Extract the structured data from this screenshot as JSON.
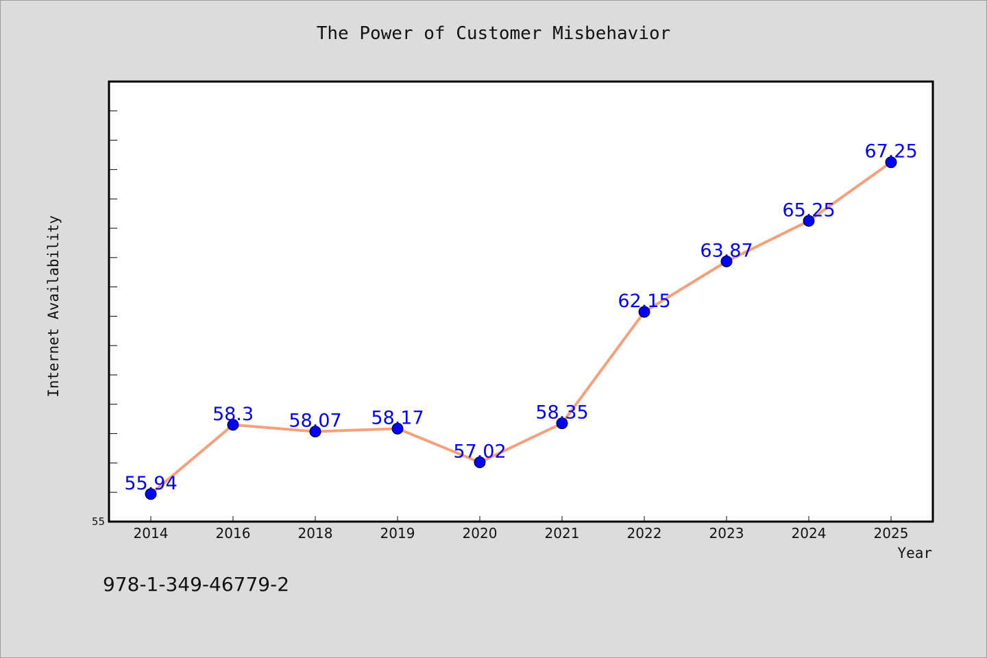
{
  "chart_data": {
    "type": "line",
    "title": "The Power of Customer Misbehavior",
    "xlabel": "Year",
    "ylabel": "Internet Availability",
    "categories": [
      "2014",
      "2016",
      "2018",
      "2019",
      "2020",
      "2021",
      "2022",
      "2023",
      "2024",
      "2025"
    ],
    "series": [
      {
        "values": [
          55.94,
          58.3,
          58.07,
          58.17,
          57.02,
          58.35,
          62.15,
          63.87,
          65.25,
          67.25
        ],
        "labels": [
          "55.94",
          "58.3",
          "58.07",
          "58.17",
          "57.02",
          "58.35",
          "62.15",
          "63.87",
          "65.25",
          "67.25"
        ],
        "line_color": "#f5a07a",
        "marker_color": "#0000ff"
      }
    ],
    "ylim": [
      55,
      70
    ],
    "y_tick_labels": [
      "55"
    ],
    "grid": false,
    "legend": "none"
  },
  "footer": {
    "code": "978-1-349-46779-2"
  },
  "colors": {
    "background": "#dcdcdc",
    "plot_background": "#ffffff",
    "data_label": "#0000ff"
  }
}
